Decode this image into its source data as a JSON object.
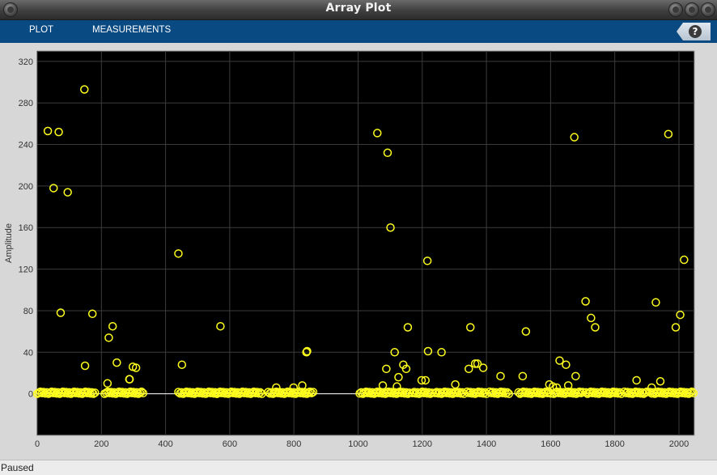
{
  "window": {
    "title": "Array Plot"
  },
  "toolstrip": {
    "tabs": [
      {
        "label": "PLOT"
      },
      {
        "label": "MEASUREMENTS"
      }
    ],
    "help_icon": "help-icon",
    "help_label": "?"
  },
  "status": {
    "text": "Paused"
  },
  "colors": {
    "axes_background": "#000000",
    "marker": "#ffff1e",
    "grid": "#3c3c3c",
    "toolstrip": "#0a4a83",
    "stem_line": "#ffffff"
  },
  "chart_data": {
    "type": "scatter",
    "title": "",
    "xlabel": "",
    "ylabel": "Amplitude",
    "xlim": [
      0,
      2048
    ],
    "ylim": [
      -40,
      330
    ],
    "xticks": [
      0,
      200,
      400,
      600,
      800,
      1000,
      1200,
      1400,
      1600,
      1800,
      2000
    ],
    "yticks": [
      0,
      40,
      80,
      120,
      160,
      200,
      240,
      280,
      320
    ],
    "grid": true,
    "marker": "circle",
    "baseline": 0,
    "points": [
      [
        33,
        253
      ],
      [
        67,
        252
      ],
      [
        51,
        198
      ],
      [
        95,
        194
      ],
      [
        73,
        78
      ],
      [
        147,
        293
      ],
      [
        149,
        27
      ],
      [
        172,
        77
      ],
      [
        219,
        10
      ],
      [
        223,
        54
      ],
      [
        235,
        65
      ],
      [
        248,
        30
      ],
      [
        287,
        14
      ],
      [
        288,
        14
      ],
      [
        298,
        26
      ],
      [
        308,
        25
      ],
      [
        440,
        135
      ],
      [
        451,
        28
      ],
      [
        571,
        65
      ],
      [
        745,
        6
      ],
      [
        799,
        6
      ],
      [
        826,
        8
      ],
      [
        839,
        40
      ],
      [
        841,
        41
      ],
      [
        1060,
        251
      ],
      [
        1077,
        8
      ],
      [
        1088,
        24
      ],
      [
        1092,
        232
      ],
      [
        1101,
        160
      ],
      [
        1114,
        40
      ],
      [
        1121,
        7
      ],
      [
        1126,
        16
      ],
      [
        1141,
        28
      ],
      [
        1150,
        24
      ],
      [
        1155,
        64
      ],
      [
        1198,
        13
      ],
      [
        1210,
        13
      ],
      [
        1216,
        128
      ],
      [
        1218,
        41
      ],
      [
        1260,
        40
      ],
      [
        1303,
        9
      ],
      [
        1345,
        24
      ],
      [
        1350,
        64
      ],
      [
        1365,
        29
      ],
      [
        1372,
        29
      ],
      [
        1390,
        25
      ],
      [
        1444,
        17
      ],
      [
        1513,
        17
      ],
      [
        1523,
        60
      ],
      [
        1596,
        9
      ],
      [
        1607,
        7
      ],
      [
        1619,
        6
      ],
      [
        1628,
        32
      ],
      [
        1648,
        28
      ],
      [
        1655,
        8
      ],
      [
        1674,
        247
      ],
      [
        1678,
        17
      ],
      [
        1709,
        89
      ],
      [
        1726,
        73
      ],
      [
        1739,
        64
      ],
      [
        1868,
        13
      ],
      [
        1915,
        6
      ],
      [
        1928,
        88
      ],
      [
        1942,
        12
      ],
      [
        1967,
        250
      ],
      [
        1990,
        64
      ],
      [
        2004,
        76
      ],
      [
        2016,
        129
      ]
    ],
    "zero_clusters": [
      [
        0,
        120
      ],
      [
        125,
        180
      ],
      [
        210,
        330
      ],
      [
        440,
        560
      ],
      [
        555,
        620
      ],
      [
        620,
        700
      ],
      [
        720,
        860
      ],
      [
        1005,
        1060
      ],
      [
        1065,
        1160
      ],
      [
        1170,
        1230
      ],
      [
        1240,
        1330
      ],
      [
        1340,
        1400
      ],
      [
        1410,
        1470
      ],
      [
        1500,
        1600
      ],
      [
        1610,
        1700
      ],
      [
        1710,
        1820
      ],
      [
        1830,
        1900
      ],
      [
        1910,
        2048
      ]
    ]
  }
}
